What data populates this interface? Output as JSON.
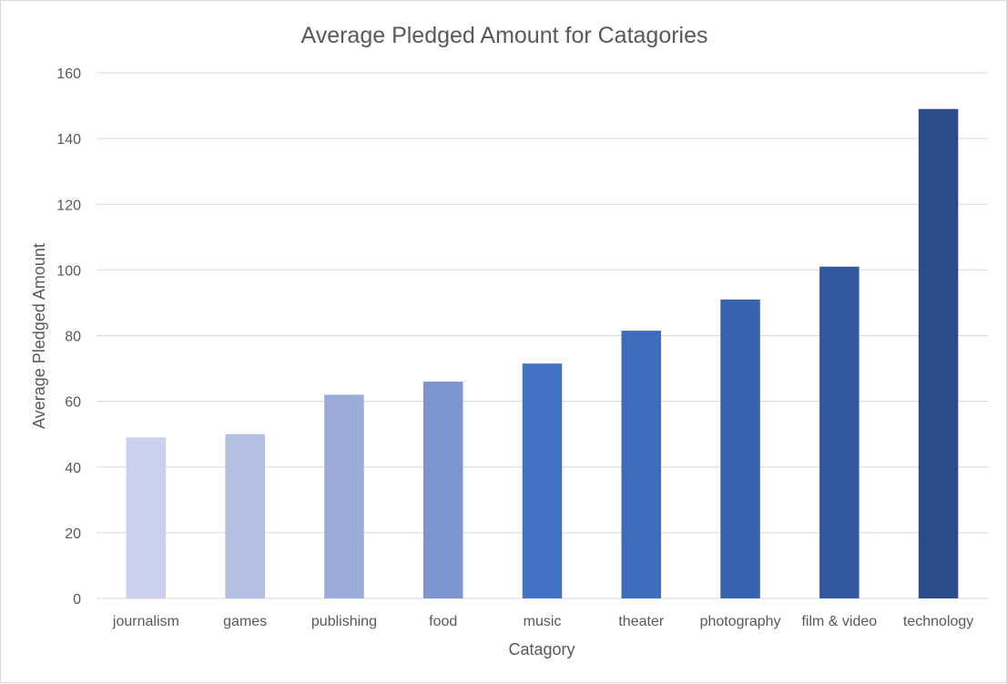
{
  "chart_data": {
    "type": "bar",
    "title": "Average Pledged Amount for Catagories",
    "xlabel": "Catagory",
    "ylabel": "Average Pledged Amount",
    "categories": [
      "journalism",
      "games",
      "publishing",
      "food",
      "music",
      "theater",
      "photography",
      "film & video",
      "technology"
    ],
    "values": [
      49,
      50,
      62,
      66,
      71.5,
      81.5,
      91,
      101,
      149
    ],
    "ylim": [
      0,
      160
    ],
    "yticks": [
      0,
      20,
      40,
      60,
      80,
      100,
      120,
      140,
      160
    ],
    "grid": true,
    "legend": "none",
    "colors": [
      "#CBD1EC",
      "#B3BEE1",
      "#9AACD7",
      "#7C95D0",
      "#4472C4",
      "#3F6BBD",
      "#3963AE",
      "#32599F",
      "#2C4C89"
    ]
  }
}
